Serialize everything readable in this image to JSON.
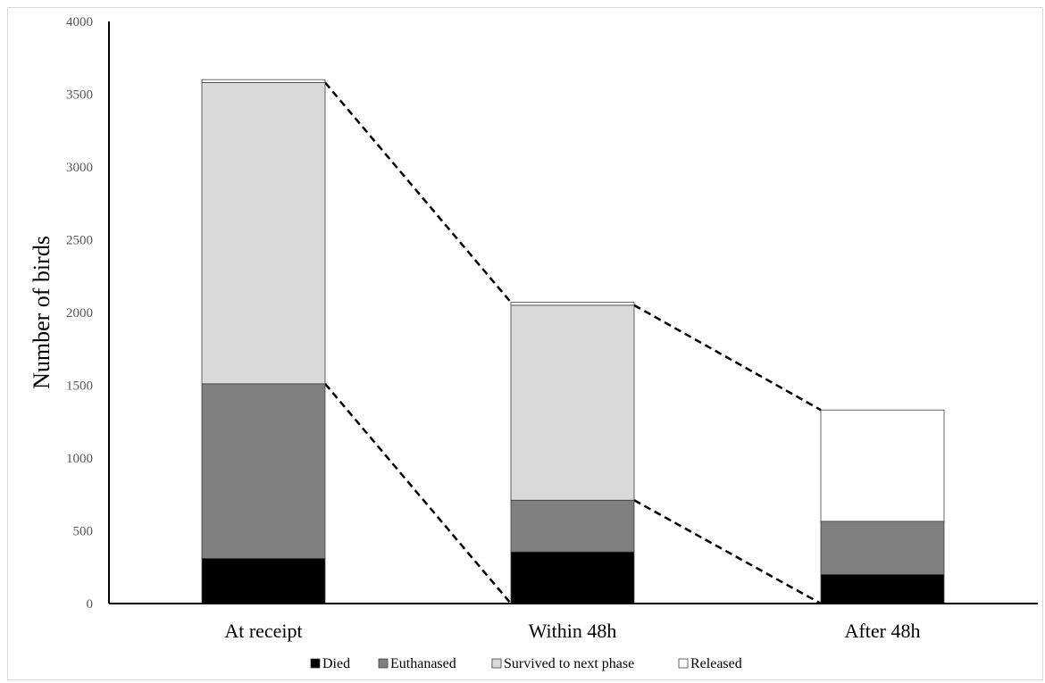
{
  "chart_data": {
    "type": "bar",
    "stacked": true,
    "title": "",
    "xlabel": "",
    "ylabel": "Number of birds",
    "ylim": [
      0,
      4000
    ],
    "ytick_step": 500,
    "yticks": [
      "0",
      "500",
      "1000",
      "1500",
      "2000",
      "2500",
      "3000",
      "3500",
      "4000"
    ],
    "grid": false,
    "legend_position": "bottom",
    "categories": [
      "At receipt",
      "Within 48h",
      "After 48h"
    ],
    "series": [
      {
        "name": "Died",
        "color": "#000000",
        "values": [
          310,
          355,
          200
        ]
      },
      {
        "name": "Euthanased",
        "color": "#808080",
        "values": [
          1200,
          355,
          365
        ]
      },
      {
        "name": "Survived to next phase",
        "color": "#d9d9d9",
        "values": [
          2070,
          1340,
          0
        ]
      },
      {
        "name": "Released",
        "color": "#ffffff",
        "values": [
          20,
          20,
          765
        ]
      }
    ],
    "connectors": {
      "style": "dashed",
      "color": "#000000"
    }
  }
}
